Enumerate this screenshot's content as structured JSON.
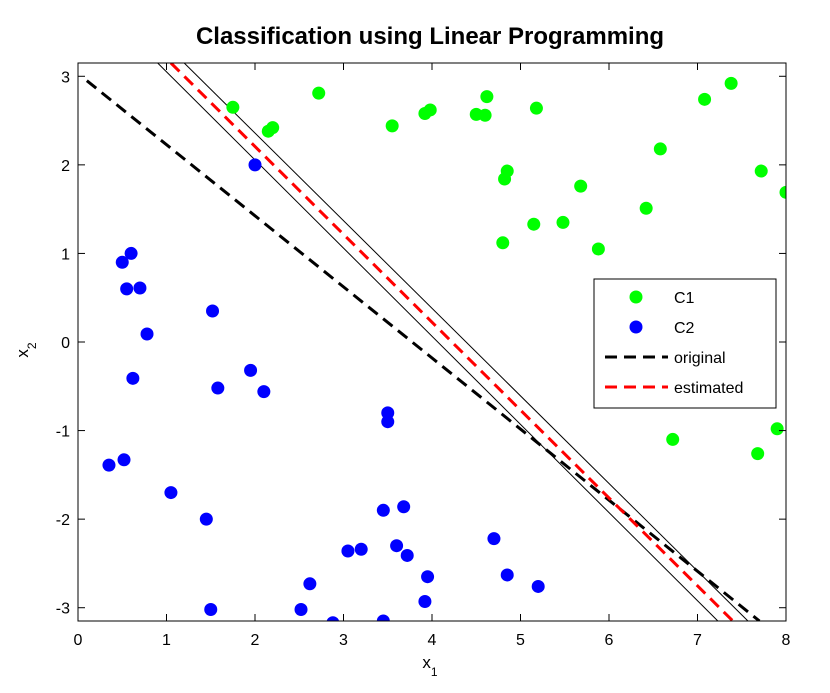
{
  "chart_data": {
    "type": "scatter",
    "title": "Classification using Linear Programming",
    "xlabel": "x",
    "xlabel_sub": "1",
    "ylabel": "x",
    "ylabel_sub": "2",
    "xlim": [
      0,
      8
    ],
    "ylim": [
      -3.15,
      3.15
    ],
    "xticks": [
      0,
      1,
      2,
      3,
      4,
      5,
      6,
      7,
      8
    ],
    "yticks": [
      3,
      2,
      1,
      0,
      -1,
      -2,
      -3
    ],
    "xtick_labels": [
      "0",
      "1",
      "2",
      "3",
      "4",
      "5",
      "6",
      "7",
      "8"
    ],
    "ytick_labels": [
      "3",
      "2",
      "1",
      "0",
      "-1",
      "-2",
      "-3"
    ],
    "grid": false,
    "legend_position": "right",
    "series": [
      {
        "name": "C1",
        "kind": "points",
        "color": "#00ff00",
        "points": [
          [
            1.75,
            2.65
          ],
          [
            2.15,
            2.38
          ],
          [
            2.2,
            2.42
          ],
          [
            2.72,
            2.81
          ],
          [
            3.55,
            2.44
          ],
          [
            3.92,
            2.58
          ],
          [
            3.98,
            2.62
          ],
          [
            4.5,
            2.57
          ],
          [
            4.6,
            2.56
          ],
          [
            4.62,
            2.77
          ],
          [
            5.18,
            2.64
          ],
          [
            7.08,
            2.74
          ],
          [
            7.38,
            2.92
          ],
          [
            6.58,
            2.18
          ],
          [
            4.82,
            1.84
          ],
          [
            4.85,
            1.93
          ],
          [
            5.68,
            1.76
          ],
          [
            7.72,
            1.93
          ],
          [
            8.0,
            1.69
          ],
          [
            6.42,
            1.51
          ],
          [
            5.15,
            1.33
          ],
          [
            5.48,
            1.35
          ],
          [
            4.8,
            1.12
          ],
          [
            5.88,
            1.05
          ],
          [
            6.72,
            -1.1
          ],
          [
            7.68,
            -1.26
          ],
          [
            7.9,
            -0.98
          ]
        ]
      },
      {
        "name": "C2",
        "kind": "points",
        "color": "#0000ff",
        "points": [
          [
            2.0,
            2.0
          ],
          [
            0.6,
            1.0
          ],
          [
            0.5,
            0.9
          ],
          [
            0.55,
            0.6
          ],
          [
            0.7,
            0.61
          ],
          [
            0.78,
            0.09
          ],
          [
            0.62,
            -0.41
          ],
          [
            1.52,
            0.35
          ],
          [
            1.58,
            -0.52
          ],
          [
            1.95,
            -0.32
          ],
          [
            2.1,
            -0.56
          ],
          [
            3.5,
            -0.8
          ],
          [
            3.5,
            -0.9
          ],
          [
            0.35,
            -1.39
          ],
          [
            0.52,
            -1.33
          ],
          [
            1.05,
            -1.7
          ],
          [
            1.45,
            -2.0
          ],
          [
            1.5,
            -3.02
          ],
          [
            2.52,
            -3.02
          ],
          [
            2.62,
            -2.73
          ],
          [
            2.88,
            -3.17
          ],
          [
            3.05,
            -2.36
          ],
          [
            3.2,
            -2.34
          ],
          [
            3.45,
            -1.9
          ],
          [
            3.68,
            -1.86
          ],
          [
            3.6,
            -2.3
          ],
          [
            3.72,
            -2.41
          ],
          [
            3.95,
            -2.65
          ],
          [
            3.92,
            -2.93
          ],
          [
            3.45,
            -3.15
          ],
          [
            4.7,
            -2.22
          ],
          [
            4.85,
            -2.63
          ],
          [
            5.2,
            -2.76
          ]
        ]
      },
      {
        "name": "original",
        "kind": "line",
        "color": "#000000",
        "dashed": true,
        "points": [
          [
            0.1,
            2.95
          ],
          [
            7.7,
            -3.15
          ]
        ]
      },
      {
        "name": "estimated",
        "kind": "line",
        "color": "#ff0000",
        "dashed": true,
        "points": [
          [
            1.05,
            3.15
          ],
          [
            7.4,
            -3.15
          ]
        ]
      },
      {
        "name": "",
        "kind": "margin",
        "color": "#000000",
        "dashed": false,
        "points": [
          [
            0.9,
            3.15
          ],
          [
            7.23,
            -3.15
          ]
        ]
      },
      {
        "name": "",
        "kind": "margin",
        "color": "#000000",
        "dashed": false,
        "points": [
          [
            1.2,
            3.15
          ],
          [
            7.57,
            -3.15
          ]
        ]
      }
    ]
  }
}
